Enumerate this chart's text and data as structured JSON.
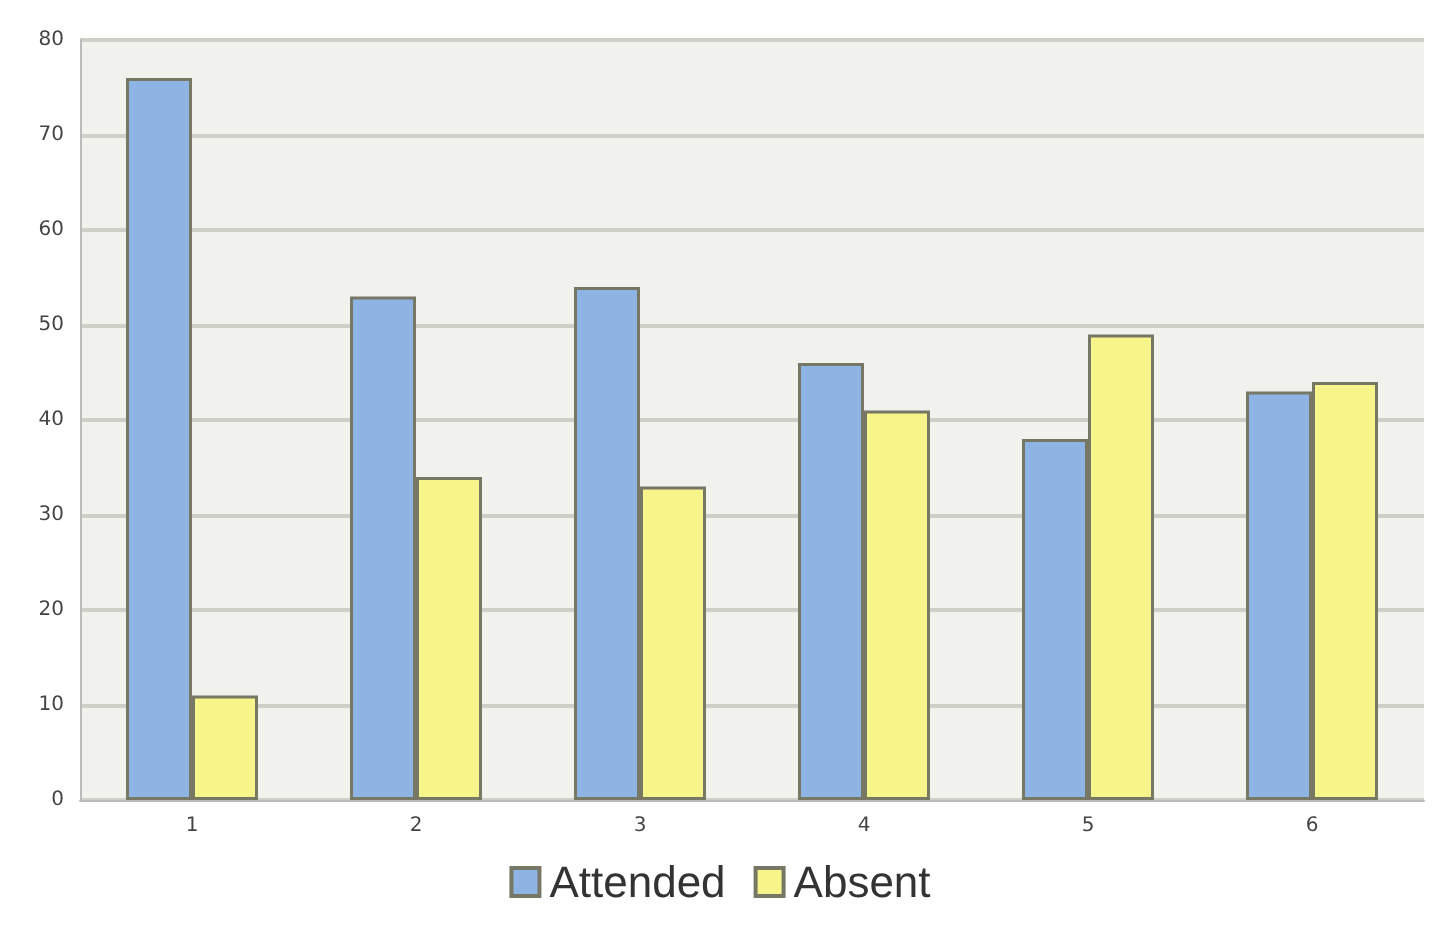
{
  "chart_data": {
    "type": "bar",
    "categories": [
      "1",
      "2",
      "3",
      "4",
      "5",
      "6"
    ],
    "series": [
      {
        "name": "Attended",
        "color": "#8db4e2",
        "values": [
          76,
          53,
          54,
          46,
          38,
          43
        ]
      },
      {
        "name": "Absent",
        "color": "#f7f58a",
        "values": [
          11,
          34,
          33,
          41,
          49,
          44
        ]
      }
    ],
    "ylim": [
      0,
      80
    ],
    "yticks": [
      0,
      10,
      20,
      30,
      40,
      50,
      60,
      70,
      80
    ],
    "grid": "y",
    "legend": "bottom"
  }
}
